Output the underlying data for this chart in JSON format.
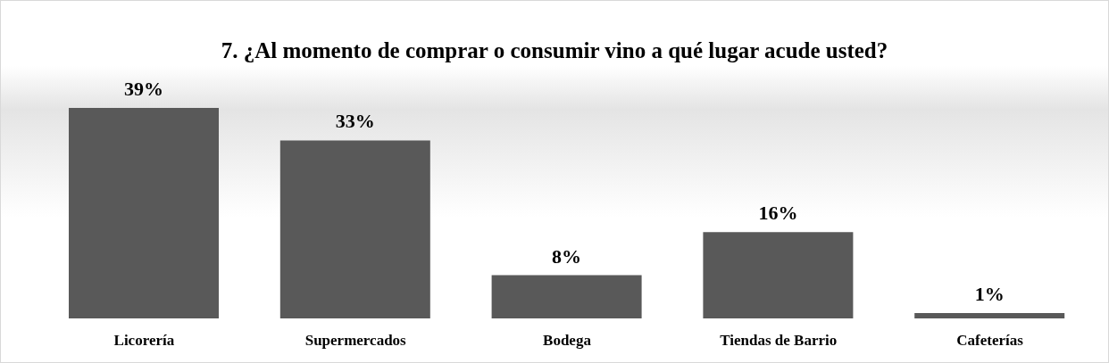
{
  "chart_data": {
    "type": "bar",
    "title": "7. ¿Al momento de comprar o consumir vino a qué lugar acude usted?",
    "categories": [
      "Licorería",
      "Supermercados",
      "Bodega",
      "Tiendas de Barrio",
      "Cafeterías"
    ],
    "values": [
      39,
      33,
      8,
      16,
      1
    ],
    "value_labels": [
      "39%",
      "33%",
      "8%",
      "16%",
      "1%"
    ],
    "color": "#595959",
    "grid": false,
    "legend": false
  }
}
